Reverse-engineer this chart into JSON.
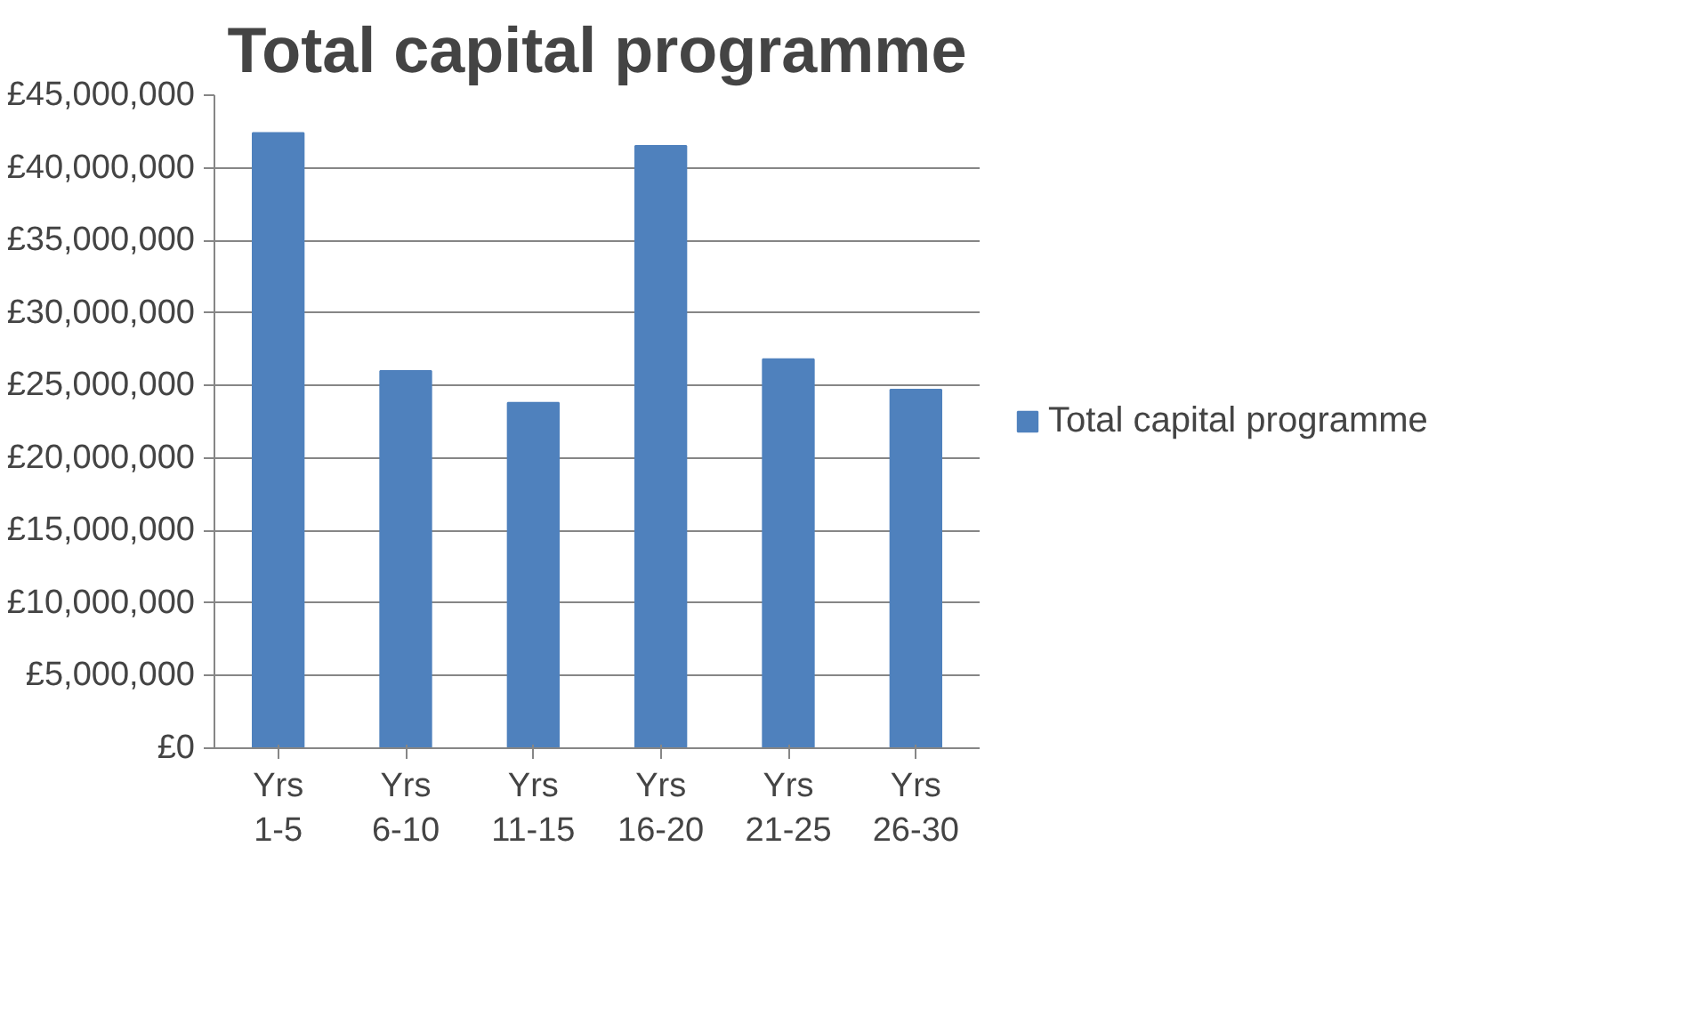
{
  "chart_data": {
    "type": "bar",
    "title": "Total capital programme",
    "categories": [
      "Yrs 1-5",
      "Yrs 6-10",
      "Yrs 11-15",
      "Yrs 16-20",
      "Yrs 21-25",
      "Yrs 26-30"
    ],
    "series": [
      {
        "name": "Total capital programme",
        "color": "#4f81bd",
        "values": [
          42400000,
          26000000,
          23800000,
          41500000,
          26800000,
          24700000
        ]
      }
    ],
    "ylim": [
      0,
      45000000
    ],
    "yticks": [
      {
        "value": 0,
        "label": "£0"
      },
      {
        "value": 5000000,
        "label": "£5,000,000"
      },
      {
        "value": 10000000,
        "label": "£10,000,000"
      },
      {
        "value": 15000000,
        "label": "£15,000,000"
      },
      {
        "value": 20000000,
        "label": "£20,000,000"
      },
      {
        "value": 25000000,
        "label": "£25,000,000"
      },
      {
        "value": 30000000,
        "label": "£30,000,000"
      },
      {
        "value": 35000000,
        "label": "£35,000,000"
      },
      {
        "value": 40000000,
        "label": "£40,000,000"
      },
      {
        "value": 45000000,
        "label": "£45,000,000"
      }
    ],
    "grid": "y",
    "legend": "right"
  }
}
